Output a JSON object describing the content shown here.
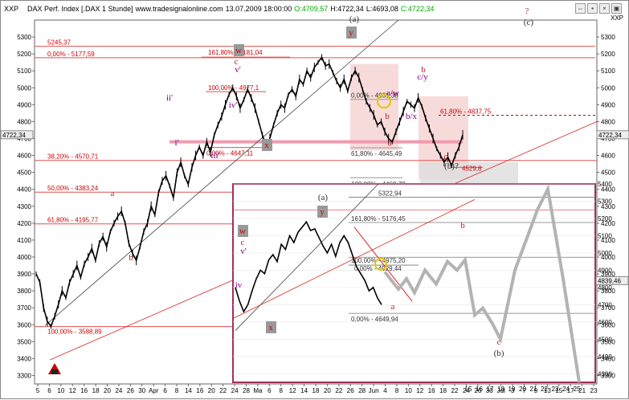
{
  "header": {
    "symbol": "XXP",
    "instrument": "DAX Perf. Index [.DAX  1 Stunde]",
    "source": "www.tradesignalonline.com",
    "datetime": "13.07.2009 18:00:00",
    "open": "O:4709,57",
    "high": "H:4722,34",
    "low": "L:4693,08",
    "close": "C:4722,34",
    "right_symbol": "XXP",
    "window_buttons": [
      "⇔",
      "▪",
      "×",
      "▣"
    ]
  },
  "colors": {
    "accent": "#cc0000",
    "fib_line": "#e05050",
    "pink_band": "#f29ab0",
    "shade": "#f4cccc",
    "grey_zone": "#dddddd",
    "inset_border": "#a0305a",
    "forecast": "#b3b3b3"
  },
  "chart_data": [
    {
      "type": "line",
      "title": "DAX Perf. Index [.DAX  1 Stunde]",
      "ylim": [
        3250,
        5400
      ],
      "y_ticks": [
        3300,
        3400,
        3500,
        3600,
        3700,
        3800,
        3900,
        4000,
        4100,
        4200,
        4300,
        4400,
        4500,
        4600,
        4700,
        4800,
        4900,
        5000,
        5100,
        5200,
        5300
      ],
      "x_ticks": [
        "5",
        "6",
        "10",
        "12",
        "16",
        "18",
        "20",
        "24",
        "26",
        "30",
        "Apr",
        "6",
        "8",
        "14",
        "16",
        "20",
        "22",
        "24",
        "28",
        "Ma",
        "6",
        "8",
        "12",
        "14",
        "18",
        "20",
        "22",
        "26",
        "28",
        "Jun",
        "4",
        "8",
        "10",
        "12",
        "16",
        "18",
        "22",
        "24",
        "26",
        "30",
        "Jul",
        "3",
        "7",
        "9",
        "13",
        "15",
        "17",
        "21",
        "23"
      ],
      "last_price": "4722,34",
      "series": [
        {
          "values": [
            3900,
            3850,
            3700,
            3620,
            3590,
            3650,
            3720,
            3800,
            3760,
            3850,
            3900,
            3950,
            3880,
            3960,
            4000,
            4050,
            3980,
            4080,
            4120,
            4060,
            4150,
            4200,
            4240,
            4270,
            4200,
            4080,
            4020,
            3980,
            4060,
            4150,
            4200,
            4300,
            4250,
            4380,
            4450,
            4480,
            4420,
            4350,
            4500,
            4560,
            4480,
            4430,
            4530,
            4600,
            4650,
            4600,
            4680,
            4620,
            4720,
            4780,
            4830,
            4900,
            4960,
            5000,
            4950,
            4880,
            4930,
            4990,
            4940,
            4880,
            4800,
            4720,
            4660,
            4700,
            4780,
            4850,
            4900,
            4880,
            4960,
            4990,
            4950,
            5050,
            5020,
            5100,
            5060,
            5120,
            5150,
            5180,
            5130,
            5140,
            5090,
            5040,
            5000,
            5050,
            4980,
            5060,
            5100,
            5060,
            4990,
            4920,
            4880,
            4840,
            4780,
            4800,
            4740,
            4700,
            4680,
            4740,
            4800,
            4860,
            4920,
            4900,
            4880,
            4940,
            4890,
            4820,
            4760,
            4700,
            4640,
            4600,
            4560,
            4590,
            4540,
            4600,
            4650,
            4722
          ]
        }
      ],
      "fib_levels": [
        {
          "label": "0,00% - 5177,59",
          "value": 5177.59
        },
        {
          "label": "161,80% - 5181,04",
          "value": 5181.04
        },
        {
          "label": "100,00% - 4977,1",
          "value": 4977.1
        },
        {
          "label": "0,00% - 4931,38",
          "value": 4931.38
        },
        {
          "label": "61,80% - 4837,75",
          "value": 4837.75
        },
        {
          "label": "0,00% - 4647,11",
          "value": 4647.11
        },
        {
          "label": "61,80% - 4645,49",
          "value": 4645.49
        },
        {
          "label": "38,20% - 4570,71",
          "value": 4570.71
        },
        {
          "label": "4529,8",
          "value": 4529.8
        },
        {
          "label": "100,00% - 4468,78",
          "value": 4468.78
        },
        {
          "label": "50,00% - 4383,24",
          "value": 4383.24
        },
        {
          "label": "61,80% - 4195,77",
          "value": 4195.77
        },
        {
          "label": "100,00% - 3588,89",
          "value": 3588.89
        },
        {
          "label": "5245,37",
          "value": 5245.37
        }
      ],
      "wave_labels": [
        "(a)",
        "(c)",
        "?",
        "y",
        "w",
        "c",
        "v'",
        "iv'",
        "iii'",
        "i'",
        "ii'",
        "x",
        "a",
        "b",
        "a/w",
        "b/x",
        "c/y",
        "b",
        "c",
        "(b)?",
        "a",
        "b"
      ]
    },
    {
      "type": "line",
      "title": "forecast inset",
      "ylim": [
        4250,
        5400
      ],
      "y_ticks": [
        4300,
        4400,
        4500,
        4600,
        4700,
        4800,
        4900,
        5000,
        5100,
        5200,
        5300,
        5400
      ],
      "x_ticks": [
        "15",
        "16",
        "17",
        "18",
        "19",
        "20",
        "21",
        "22",
        "23",
        "24",
        "25"
      ],
      "last_price": "4839,46",
      "fib_levels": [
        {
          "label": "5322,94",
          "value": 5322.94
        },
        {
          "label": "161,80% - 5176,45",
          "value": 5176.45
        },
        {
          "label": "100,00% - 4975,20",
          "value": 4975.2
        },
        {
          "label": "0,00% - 4929,44",
          "value": 4929.44
        },
        {
          "label": "0,00% - 4649,94",
          "value": 4649.94
        }
      ],
      "wave_labels": [
        "(a)",
        "y",
        "w",
        "c",
        "v'",
        "iv",
        "x",
        "a",
        "b",
        "c",
        "(b)"
      ]
    }
  ]
}
